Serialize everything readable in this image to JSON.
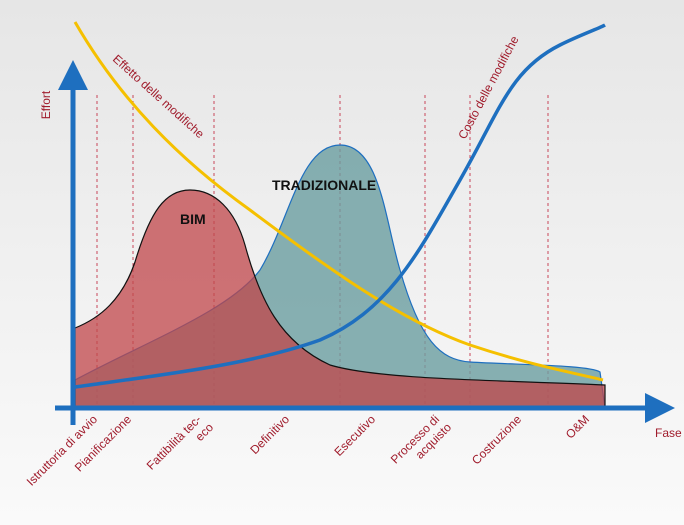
{
  "diagram": {
    "y_axis_label": "Effort",
    "x_axis_label": "Fase",
    "curves": {
      "bim": "BIM",
      "traditional": "TRADIZIONALE",
      "effect": "Effetto delle modifiche",
      "cost": "Costo delle modifiche"
    },
    "phases": [
      {
        "lines": [
          "Istruttoria di avvio"
        ]
      },
      {
        "lines": [
          "Pianificazione"
        ]
      },
      {
        "lines": [
          "Fattibilità tec-",
          "eco"
        ]
      },
      {
        "lines": [
          "Definitivo"
        ]
      },
      {
        "lines": [
          "Esecutivo"
        ]
      },
      {
        "lines": [
          "Processo di",
          "acquisto"
        ]
      },
      {
        "lines": [
          "Costruzione"
        ]
      },
      {
        "lines": [
          "O&M"
        ]
      }
    ]
  }
}
